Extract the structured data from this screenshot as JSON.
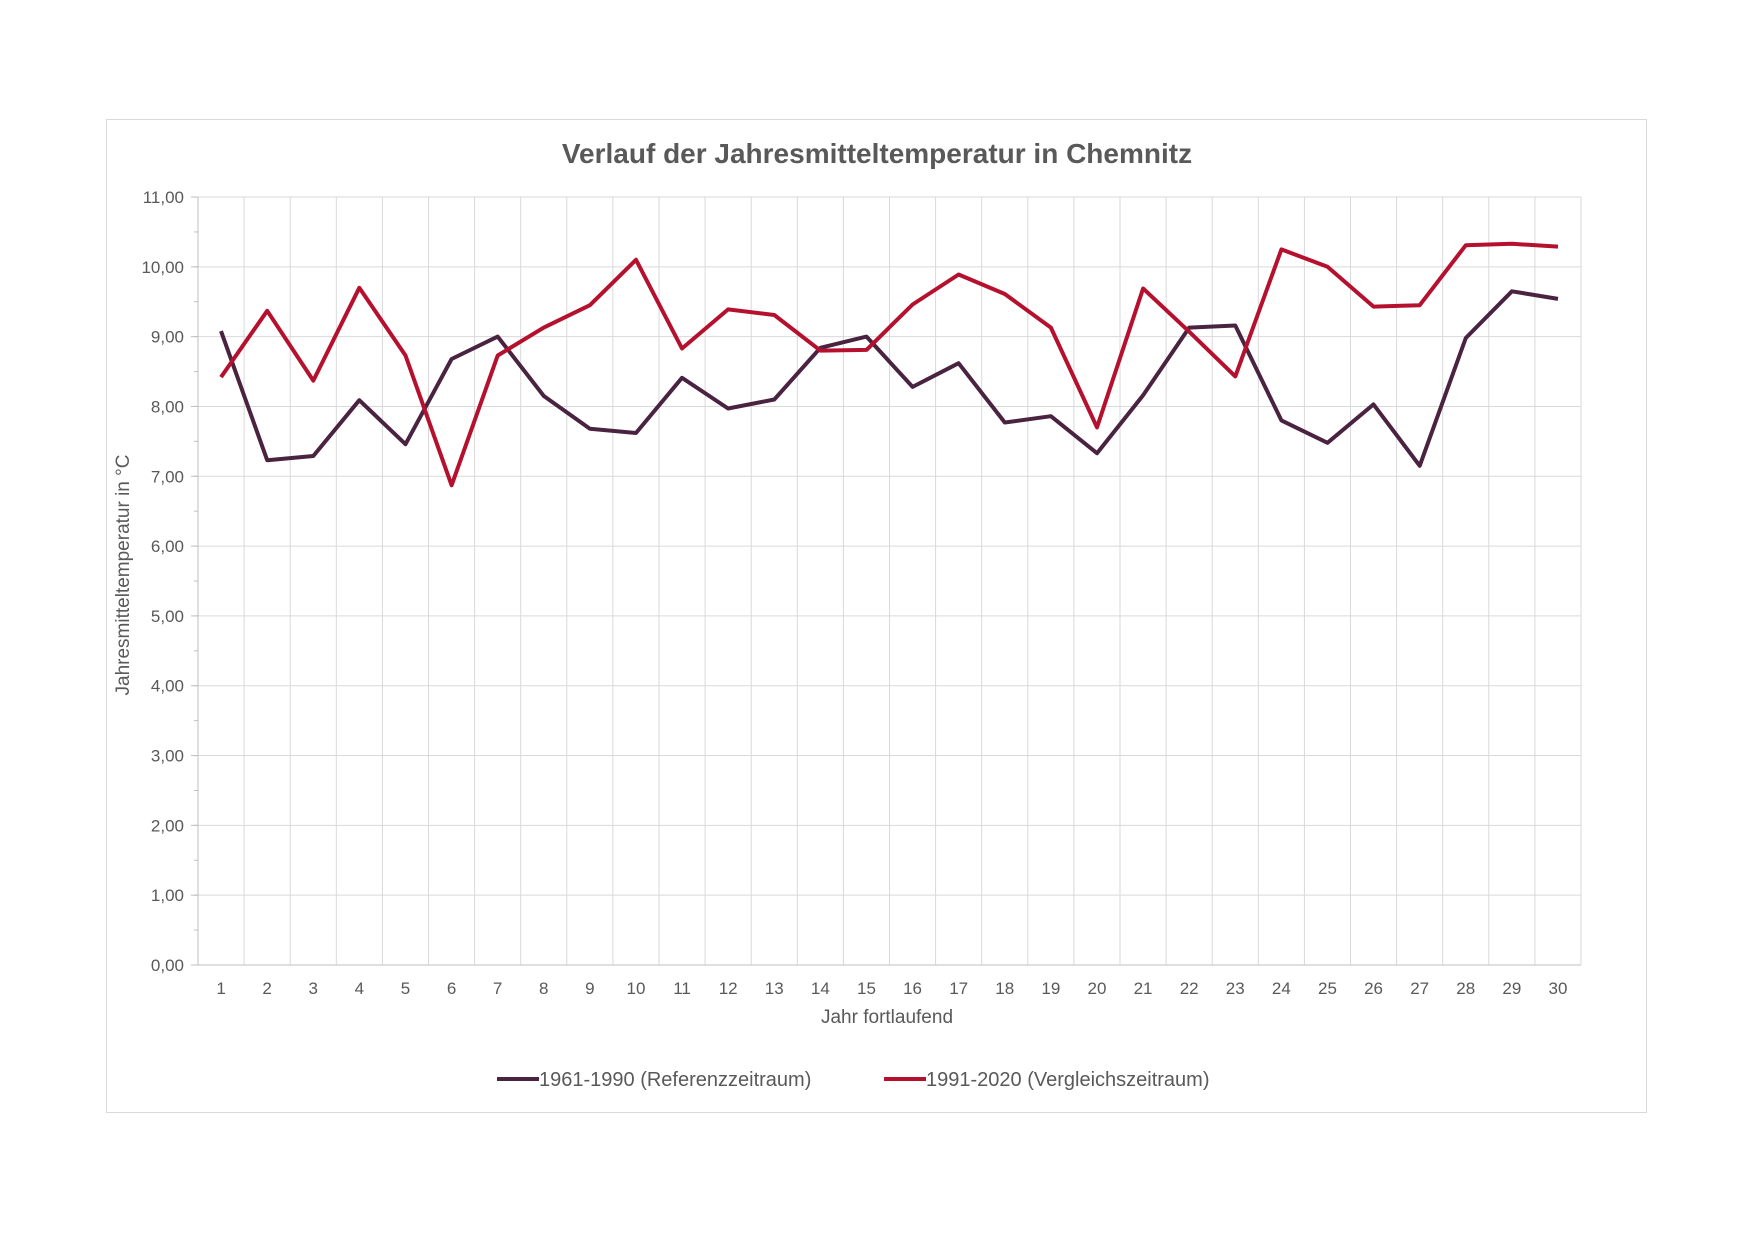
{
  "chart_data": {
    "type": "line",
    "title": "Verlauf der Jahresmitteltemperatur in Chemnitz",
    "xlabel": "Jahr fortlaufend",
    "ylabel": "Jahresmitteltemperatur in °C",
    "ylim": [
      0,
      11
    ],
    "ytick_step": 1,
    "ytick_labels": [
      "0,00",
      "1,00",
      "2,00",
      "3,00",
      "4,00",
      "5,00",
      "6,00",
      "7,00",
      "8,00",
      "9,00",
      "10,00",
      "11,00"
    ],
    "categories": [
      "1",
      "2",
      "3",
      "4",
      "5",
      "6",
      "7",
      "8",
      "9",
      "10",
      "11",
      "12",
      "13",
      "14",
      "15",
      "16",
      "17",
      "18",
      "19",
      "20",
      "21",
      "22",
      "23",
      "24",
      "25",
      "26",
      "27",
      "28",
      "29",
      "30"
    ],
    "grid": true,
    "legend_position": "bottom",
    "series": [
      {
        "name": "1961-1990 (Referenzzeitraum)",
        "color": "#4a2341",
        "values": [
          9.08,
          7.23,
          7.29,
          8.09,
          7.46,
          8.68,
          9.0,
          8.15,
          7.68,
          7.62,
          8.41,
          7.97,
          8.1,
          8.84,
          9.0,
          8.28,
          8.62,
          7.77,
          7.86,
          7.33,
          8.16,
          9.13,
          9.16,
          7.8,
          7.48,
          8.03,
          7.15,
          8.98,
          9.65,
          9.54
        ]
      },
      {
        "name": "1991-2020 (Vergleichszeitraum)",
        "color": "#b5112f",
        "values": [
          8.42,
          9.37,
          8.37,
          9.7,
          8.73,
          6.87,
          8.73,
          9.13,
          9.45,
          10.1,
          8.83,
          9.39,
          9.31,
          8.8,
          8.81,
          9.46,
          9.89,
          9.61,
          9.13,
          7.7,
          9.69,
          9.07,
          8.43,
          10.25,
          10.0,
          9.43,
          9.45,
          10.31,
          10.33,
          10.29
        ]
      }
    ]
  }
}
